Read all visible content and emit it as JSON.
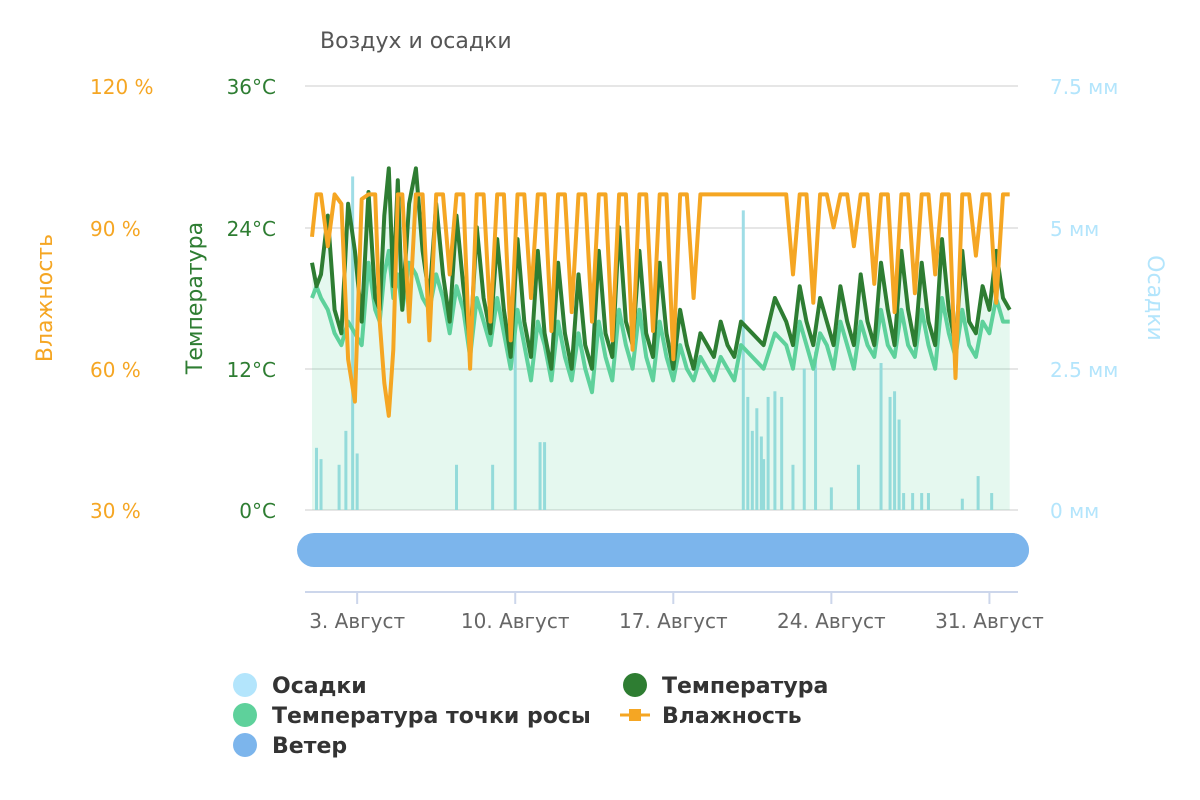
{
  "chart_data": {
    "type": "line",
    "title": "Воздух и осадки",
    "y_axes": {
      "humidity": {
        "label": "Влажность",
        "ticks": [
          "120 %",
          "90 %",
          "60 %",
          "30 %"
        ],
        "range": [
          30,
          120
        ],
        "color": "#f5a623"
      },
      "temperature": {
        "label": "Температура",
        "ticks": [
          "36°C",
          "24°C",
          "12°C",
          "0°C"
        ],
        "range": [
          0,
          36
        ],
        "color": "#2e7d32"
      },
      "precipitation": {
        "label": "Осадки",
        "ticks": [
          "7.5 мм",
          "5 мм",
          "2.5 мм",
          "0 мм"
        ],
        "range": [
          0,
          7.5
        ],
        "color": "#b3e5fc"
      }
    },
    "x_axis": {
      "ticks": [
        "3. Август",
        "10. Август",
        "17. Август",
        "24. Август",
        "31. Август"
      ],
      "tick_days": [
        3,
        10,
        17,
        24,
        31
      ],
      "range_days": [
        1,
        32
      ]
    },
    "series": [
      {
        "name": "Влажность",
        "unit": "%",
        "color": "#f5a623",
        "x_days": [
          1.0,
          1.2,
          1.4,
          1.7,
          2.0,
          2.3,
          2.6,
          2.9,
          3.2,
          3.5,
          3.8,
          4.0,
          4.2,
          4.4,
          4.6,
          4.8,
          5.0,
          5.3,
          5.6,
          5.9,
          6.2,
          6.5,
          6.8,
          7.1,
          7.4,
          7.7,
          8.0,
          8.3,
          8.6,
          8.9,
          9.2,
          9.5,
          9.8,
          10.1,
          10.4,
          10.7,
          11.0,
          11.3,
          11.6,
          11.9,
          12.2,
          12.5,
          12.8,
          13.1,
          13.4,
          13.7,
          14.0,
          14.3,
          14.6,
          14.9,
          15.2,
          15.5,
          15.8,
          16.1,
          16.4,
          16.7,
          17.0,
          17.3,
          17.6,
          17.9,
          18.2,
          18.5,
          18.8,
          19.1,
          19.4,
          19.7,
          20.0,
          20.5,
          21.0,
          21.5,
          22.0,
          22.3,
          22.6,
          22.9,
          23.2,
          23.5,
          23.8,
          24.1,
          24.4,
          24.7,
          25.0,
          25.3,
          25.6,
          25.9,
          26.2,
          26.5,
          26.8,
          27.1,
          27.4,
          27.7,
          28.0,
          28.3,
          28.6,
          28.9,
          29.2,
          29.5,
          29.8,
          30.1,
          30.4,
          30.7,
          31.0,
          31.3,
          31.6,
          31.9
        ],
        "values": [
          88,
          97,
          97,
          86,
          97,
          95,
          62,
          53,
          96,
          97,
          97,
          70,
          57,
          50,
          64,
          97,
          97,
          70,
          97,
          97,
          66,
          97,
          97,
          80,
          97,
          97,
          60,
          97,
          97,
          70,
          97,
          97,
          66,
          97,
          97,
          75,
          97,
          97,
          68,
          97,
          97,
          72,
          97,
          97,
          70,
          97,
          97,
          66,
          97,
          97,
          64,
          97,
          97,
          68,
          97,
          97,
          62,
          97,
          97,
          75,
          97,
          97,
          97,
          97,
          97,
          97,
          97,
          97,
          97,
          97,
          97,
          80,
          97,
          97,
          74,
          97,
          97,
          90,
          97,
          97,
          86,
          97,
          97,
          78,
          97,
          97,
          72,
          97,
          97,
          76,
          97,
          97,
          80,
          97,
          97,
          58,
          97,
          97,
          84,
          97,
          97,
          74,
          97,
          97
        ]
      },
      {
        "name": "Температура",
        "unit": "°C",
        "color": "#2e7d32",
        "x_days": [
          1.0,
          1.2,
          1.4,
          1.7,
          2.0,
          2.3,
          2.6,
          2.9,
          3.2,
          3.5,
          3.8,
          4.0,
          4.2,
          4.4,
          4.6,
          4.8,
          5.0,
          5.3,
          5.6,
          5.9,
          6.2,
          6.5,
          6.8,
          7.1,
          7.4,
          7.7,
          8.0,
          8.3,
          8.6,
          8.9,
          9.2,
          9.5,
          9.8,
          10.1,
          10.4,
          10.7,
          11.0,
          11.3,
          11.6,
          11.9,
          12.2,
          12.5,
          12.8,
          13.1,
          13.4,
          13.7,
          14.0,
          14.3,
          14.6,
          14.9,
          15.2,
          15.5,
          15.8,
          16.1,
          16.4,
          16.7,
          17.0,
          17.3,
          17.6,
          17.9,
          18.2,
          18.5,
          18.8,
          19.1,
          19.4,
          19.7,
          20.0,
          20.5,
          21.0,
          21.5,
          22.0,
          22.3,
          22.6,
          22.9,
          23.2,
          23.5,
          23.8,
          24.1,
          24.4,
          24.7,
          25.0,
          25.3,
          25.6,
          25.9,
          26.2,
          26.5,
          26.8,
          27.1,
          27.4,
          27.7,
          28.0,
          28.3,
          28.6,
          28.9,
          29.2,
          29.5,
          29.8,
          30.1,
          30.4,
          30.7,
          31.0,
          31.3,
          31.6,
          31.9
        ],
        "values": [
          21,
          19,
          20,
          25,
          17,
          15,
          26,
          22,
          16,
          27,
          18,
          17,
          25,
          29,
          19,
          28,
          17,
          26,
          29,
          22,
          18,
          26,
          20,
          16,
          25,
          19,
          14,
          24,
          18,
          15,
          23,
          17,
          13,
          23,
          16,
          13,
          22,
          15,
          12,
          21,
          15,
          12,
          20,
          14,
          12,
          22,
          15,
          13,
          24,
          16,
          14,
          22,
          15,
          13,
          21,
          15,
          12,
          17,
          14,
          12,
          15,
          14,
          13,
          16,
          14,
          13,
          16,
          15,
          14,
          18,
          16,
          14,
          19,
          16,
          14,
          18,
          16,
          14,
          19,
          16,
          14,
          20,
          16,
          14,
          21,
          17,
          14,
          22,
          17,
          14,
          21,
          16,
          14,
          23,
          17,
          14,
          22,
          16,
          15,
          19,
          17,
          22,
          18,
          17
        ]
      },
      {
        "name": "Температура точки росы",
        "unit": "°C",
        "color": "#5ed19b",
        "x_days": [
          1.0,
          1.2,
          1.4,
          1.7,
          2.0,
          2.3,
          2.6,
          2.9,
          3.2,
          3.5,
          3.8,
          4.0,
          4.2,
          4.4,
          4.6,
          4.8,
          5.0,
          5.3,
          5.6,
          5.9,
          6.2,
          6.5,
          6.8,
          7.1,
          7.4,
          7.7,
          8.0,
          8.3,
          8.6,
          8.9,
          9.2,
          9.5,
          9.8,
          10.1,
          10.4,
          10.7,
          11.0,
          11.3,
          11.6,
          11.9,
          12.2,
          12.5,
          12.8,
          13.1,
          13.4,
          13.7,
          14.0,
          14.3,
          14.6,
          14.9,
          15.2,
          15.5,
          15.8,
          16.1,
          16.4,
          16.7,
          17.0,
          17.3,
          17.6,
          17.9,
          18.2,
          18.5,
          18.8,
          19.1,
          19.4,
          19.7,
          20.0,
          20.5,
          21.0,
          21.5,
          22.0,
          22.3,
          22.6,
          22.9,
          23.2,
          23.5,
          23.8,
          24.1,
          24.4,
          24.7,
          25.0,
          25.3,
          25.6,
          25.9,
          26.2,
          26.5,
          26.8,
          27.1,
          27.4,
          27.7,
          28.0,
          28.3,
          28.6,
          28.9,
          29.2,
          29.5,
          29.8,
          30.1,
          30.4,
          30.7,
          31.0,
          31.3,
          31.6,
          31.9
        ],
        "values": [
          18,
          19,
          18,
          17,
          15,
          14,
          16,
          15,
          14,
          21,
          17,
          16,
          20,
          22,
          18,
          20,
          17,
          21,
          20,
          18,
          17,
          20,
          18,
          15,
          19,
          17,
          13,
          18,
          16,
          14,
          18,
          15,
          12,
          17,
          14,
          11,
          16,
          14,
          11,
          16,
          13,
          11,
          15,
          12,
          10,
          16,
          13,
          11,
          17,
          14,
          12,
          17,
          13,
          11,
          16,
          13,
          11,
          14,
          12,
          11,
          13,
          12,
          11,
          13,
          12,
          11,
          14,
          13,
          12,
          15,
          14,
          12,
          16,
          14,
          12,
          15,
          14,
          12,
          16,
          14,
          12,
          16,
          14,
          13,
          17,
          14,
          13,
          17,
          14,
          13,
          17,
          14,
          12,
          18,
          15,
          13,
          17,
          14,
          13,
          16,
          15,
          18,
          16,
          16
        ]
      },
      {
        "name": "Осадки",
        "unit": "мм",
        "color": "#b3e5fc",
        "x_days": [
          1.2,
          1.4,
          2.2,
          2.5,
          2.8,
          3.0,
          7.4,
          9.0,
          10.0,
          11.1,
          11.3,
          20.1,
          20.3,
          20.5,
          20.7,
          20.9,
          21.0,
          21.2,
          21.5,
          21.8,
          22.3,
          22.8,
          23.3,
          24.0,
          25.2,
          26.2,
          26.6,
          26.8,
          27.0,
          27.2,
          27.6,
          28.0,
          28.3,
          29.8,
          30.5,
          31.1
        ],
        "values": [
          1.1,
          0.9,
          0.8,
          1.4,
          5.9,
          1.0,
          0.8,
          0.8,
          4.7,
          1.2,
          1.2,
          5.3,
          2.0,
          1.4,
          1.8,
          1.3,
          0.9,
          2.0,
          2.1,
          2.0,
          0.8,
          2.5,
          2.8,
          0.4,
          0.8,
          2.6,
          2.0,
          2.1,
          1.6,
          0.3,
          0.3,
          0.3,
          0.3,
          0.2,
          0.6,
          0.3
        ]
      },
      {
        "name": "Ветер",
        "color": "#7cb5ec"
      }
    ],
    "legend": {
      "placement": "bottom",
      "entries": [
        "Осадки",
        "Температура",
        "Температура точки росы",
        "Влажность",
        "Ветер"
      ]
    },
    "grid": true
  }
}
